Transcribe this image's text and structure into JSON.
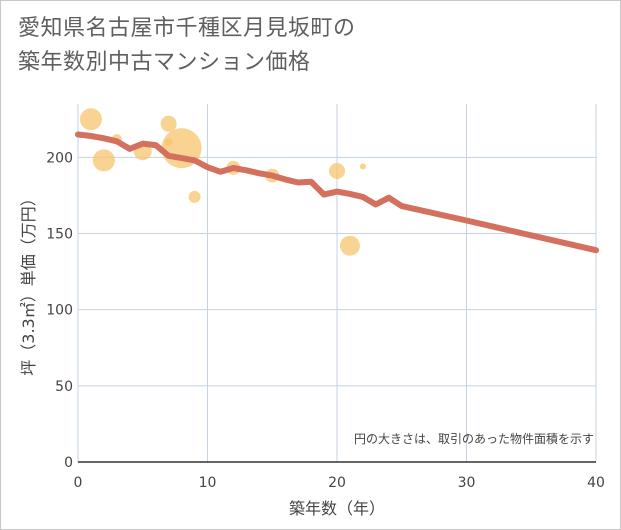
{
  "title": {
    "line1": "愛知県名古屋市千種区月見坂町の",
    "line2": "築年数別中古マンション価格"
  },
  "chart_data": {
    "type": "scatter",
    "xlabel": "築年数（年）",
    "ylabel": "坪（3.3㎡）単価（万円）",
    "xlim": [
      0,
      40
    ],
    "ylim": [
      0,
      235
    ],
    "xticks": [
      "0",
      "10",
      "20",
      "30",
      "40"
    ],
    "yticks": [
      "0",
      "50",
      "100",
      "150",
      "200"
    ],
    "grid": true,
    "note": "円の大きさは、取引のあった物件面積を示す",
    "colors": {
      "bubble": "#f5c46d",
      "line": "#d4705e",
      "grid": "#c5d3e2",
      "axis": "#333333",
      "background": "#ffffff"
    },
    "bubbles": [
      {
        "x": 1,
        "y": 225,
        "size": 11
      },
      {
        "x": 2,
        "y": 198,
        "size": 11
      },
      {
        "x": 3,
        "y": 212,
        "size": 5
      },
      {
        "x": 5,
        "y": 204,
        "size": 9
      },
      {
        "x": 7,
        "y": 222,
        "size": 8
      },
      {
        "x": 7,
        "y": 210,
        "size": 4
      },
      {
        "x": 8,
        "y": 206,
        "size": 20
      },
      {
        "x": 9,
        "y": 174,
        "size": 6
      },
      {
        "x": 12,
        "y": 193,
        "size": 7
      },
      {
        "x": 15,
        "y": 188,
        "size": 7
      },
      {
        "x": 20,
        "y": 191,
        "size": 8
      },
      {
        "x": 21,
        "y": 142,
        "size": 10
      },
      {
        "x": 22,
        "y": 194,
        "size": 3
      }
    ],
    "trend": {
      "x": [
        0,
        1,
        2,
        3,
        4,
        5,
        6,
        7,
        8,
        9,
        10,
        11,
        12,
        13,
        14,
        15,
        16,
        17,
        18,
        19,
        20,
        21,
        22,
        23,
        24,
        25,
        30,
        40
      ],
      "y": [
        215,
        214,
        212.5,
        210.5,
        205.5,
        209,
        208,
        201,
        199.5,
        198,
        193.5,
        190.5,
        193,
        191.5,
        189.5,
        188,
        185.5,
        183.5,
        184,
        175.5,
        177.5,
        176,
        174,
        169,
        173.5,
        168,
        158.5,
        139
      ]
    }
  }
}
